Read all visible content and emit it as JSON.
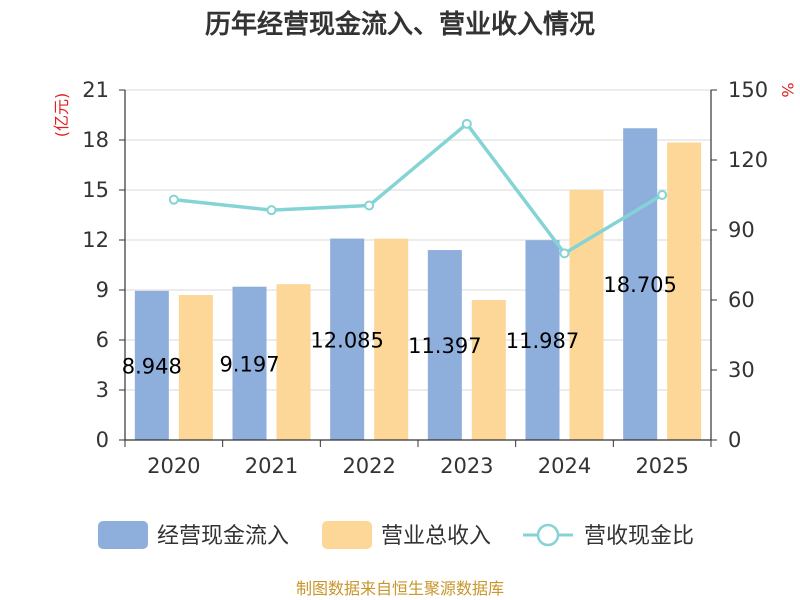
{
  "chart_data": {
    "type": "bar",
    "title": "历年经营现金流入、营业收入情况",
    "categories": [
      "2020",
      "2021",
      "2022",
      "2023",
      "2024",
      "2025"
    ],
    "series": [
      {
        "name": "经营现金流入",
        "kind": "bar",
        "axis": "left",
        "color": "#8eaedc",
        "values": [
          8.948,
          9.197,
          12.085,
          11.397,
          11.987,
          18.705
        ],
        "labels": [
          "8.948",
          "9.197",
          "12.085",
          "11.397",
          "11.987",
          "18.705"
        ]
      },
      {
        "name": "营业总收入",
        "kind": "bar",
        "axis": "left",
        "color": "#fdd797",
        "values": [
          8.7,
          9.35,
          12.08,
          8.4,
          15.0,
          17.85
        ]
      },
      {
        "name": "营收现金比",
        "kind": "line",
        "axis": "right",
        "color": "#85d4d5",
        "values": [
          103,
          98.5,
          100.5,
          135.5,
          80,
          105
        ]
      }
    ],
    "left_axis": {
      "unit": "(亿元)",
      "ylim": [
        0,
        21
      ],
      "ticks": [
        0,
        3,
        6,
        9,
        12,
        15,
        18,
        21
      ]
    },
    "right_axis": {
      "unit": "%",
      "ylim": [
        0,
        150
      ],
      "ticks": [
        0,
        30,
        60,
        90,
        120,
        150
      ]
    },
    "grid": true,
    "legend_position": "bottom"
  },
  "source": "制图数据来自恒生聚源数据库"
}
